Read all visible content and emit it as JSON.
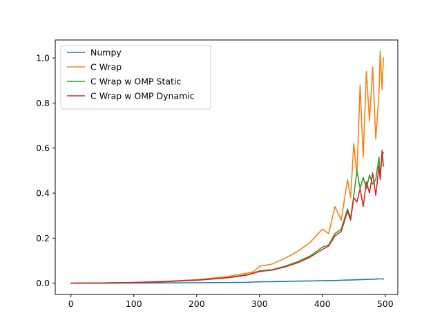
{
  "chart_data": {
    "type": "line",
    "title": "",
    "xlabel": "",
    "ylabel": "",
    "xlim": [
      -25,
      520
    ],
    "ylim": [
      -0.05,
      1.08
    ],
    "xticks": [
      0,
      100,
      200,
      300,
      400,
      500
    ],
    "yticks": [
      0.0,
      0.2,
      0.4,
      0.6,
      0.8,
      1.0
    ],
    "xtick_labels": [
      "0",
      "100",
      "200",
      "300",
      "400",
      "500"
    ],
    "ytick_labels": [
      "0.0",
      "0.2",
      "0.4",
      "0.6",
      "0.8",
      "1.0"
    ],
    "grid": false,
    "legend_position": "top-left",
    "x": [
      0,
      50,
      100,
      150,
      200,
      250,
      280,
      290,
      300,
      320,
      340,
      360,
      380,
      400,
      410,
      420,
      430,
      440,
      445,
      450,
      455,
      460,
      465,
      470,
      475,
      480,
      485,
      490,
      492,
      495,
      497
    ],
    "series": [
      {
        "name": "Numpy",
        "color": "#1f77b4",
        "values": [
          0.0,
          0.0,
          0.0005,
          0.001,
          0.002,
          0.003,
          0.004,
          0.005,
          0.006,
          0.007,
          0.008,
          0.009,
          0.01,
          0.011,
          0.012,
          0.012,
          0.013,
          0.014,
          0.014,
          0.015,
          0.015,
          0.016,
          0.016,
          0.017,
          0.017,
          0.018,
          0.018,
          0.019,
          0.019,
          0.02,
          0.018
        ]
      },
      {
        "name": "C Wrap",
        "color": "#ff7f0e",
        "values": [
          0.0,
          0.001,
          0.003,
          0.008,
          0.015,
          0.03,
          0.045,
          0.05,
          0.075,
          0.085,
          0.11,
          0.14,
          0.18,
          0.24,
          0.22,
          0.34,
          0.28,
          0.46,
          0.38,
          0.62,
          0.48,
          0.88,
          0.56,
          0.94,
          0.72,
          0.96,
          0.64,
          0.84,
          1.03,
          0.86,
          1.0
        ]
      },
      {
        "name": "C Wrap w OMP Static",
        "color": "#2ca02c",
        "values": [
          0.0,
          0.001,
          0.003,
          0.008,
          0.015,
          0.025,
          0.038,
          0.045,
          0.055,
          0.06,
          0.075,
          0.095,
          0.12,
          0.16,
          0.17,
          0.22,
          0.24,
          0.33,
          0.29,
          0.39,
          0.5,
          0.42,
          0.47,
          0.42,
          0.48,
          0.44,
          0.46,
          0.56,
          0.47,
          0.57,
          0.58
        ]
      },
      {
        "name": "C Wrap w OMP Dynamic",
        "color": "#d62728",
        "values": [
          0.0,
          0.001,
          0.003,
          0.007,
          0.013,
          0.024,
          0.036,
          0.044,
          0.052,
          0.058,
          0.072,
          0.09,
          0.115,
          0.15,
          0.165,
          0.21,
          0.23,
          0.32,
          0.28,
          0.38,
          0.36,
          0.42,
          0.34,
          0.45,
          0.4,
          0.49,
          0.39,
          0.52,
          0.46,
          0.59,
          0.52
        ]
      }
    ]
  }
}
